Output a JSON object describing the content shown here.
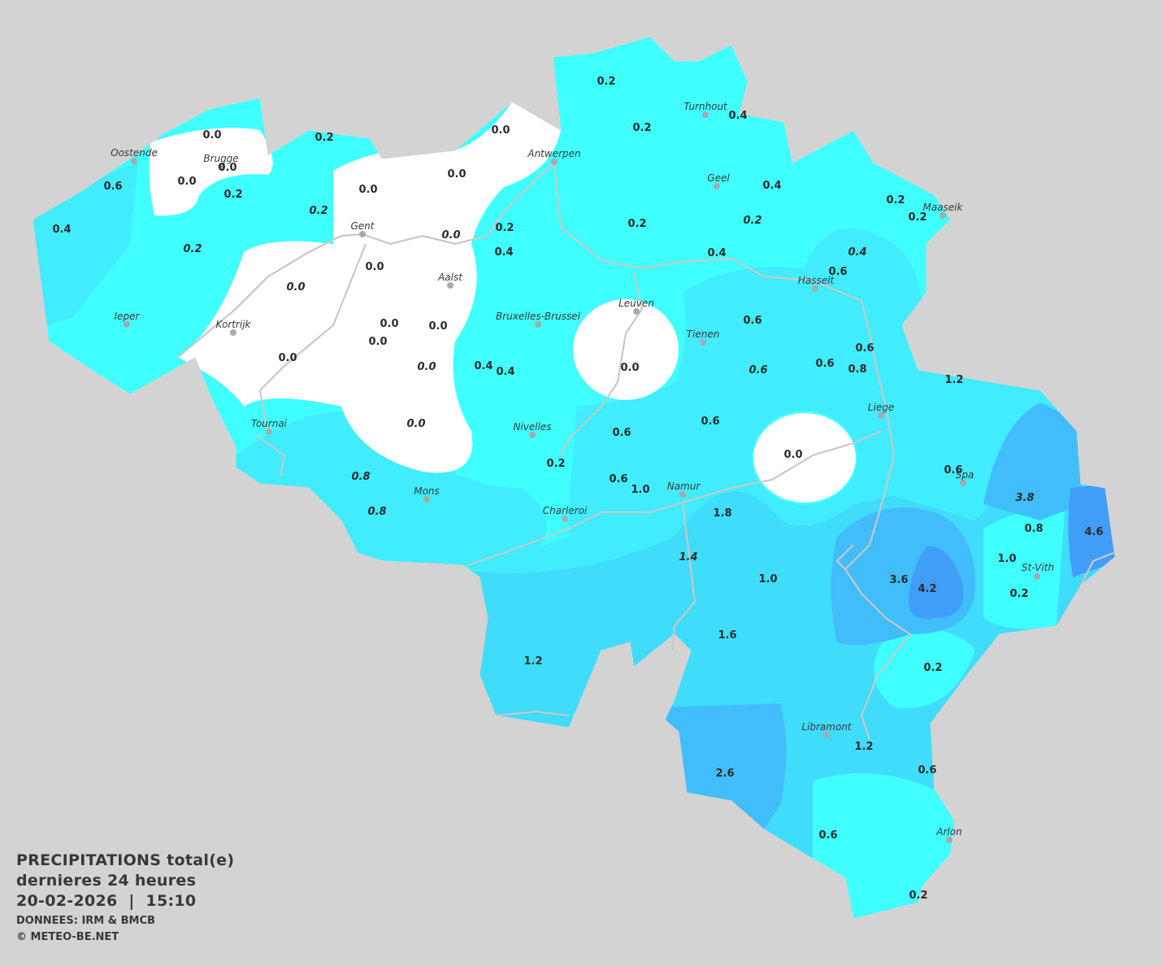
{
  "legend": {
    "title": "PRECIPITATIONS total(e)",
    "period": "dernieres 24 heures",
    "datetime": "20-02-2026  |  15:10",
    "source": "DONNEES: IRM & BMCB",
    "copyright": "© METEO-BE.NET"
  },
  "colors": {
    "background": "#d3d3d3",
    "zero": "#ffffff",
    "level_0_2": "#40ffff",
    "level_0_6": "#40ecfd",
    "level_1_2": "#3fdcfb",
    "level_2_6": "#40bdfa",
    "level_4": "#409df8",
    "rivers": "#c8c8c8"
  },
  "cities": [
    "Oostende",
    "Brugge",
    "Antwerpen",
    "Turnhout",
    "Gent",
    "Aalst",
    "Geel",
    "Maaseik",
    "Hasselt",
    "Ieper",
    "Kortrijk",
    "Bruxelles-Brussel",
    "Leuven",
    "Tienen",
    "Liege",
    "Tournai",
    "Nivelles",
    "Spa",
    "Mons",
    "Namur",
    "Charleroi",
    "St-Vith",
    "Libramont",
    "Arlon"
  ],
  "values": [
    "0.2",
    "0.2",
    "0.4",
    "0.0",
    "0.0",
    "0.0",
    "0.2",
    "0.0",
    "0.0",
    "0.6",
    "0.2",
    "0.0",
    "0.4",
    "0.2",
    "0.2",
    "0.2",
    "0.4",
    "0.2",
    "0.2",
    "0.2",
    "0.0",
    "0.2",
    "0.4",
    "0.4",
    "0.4",
    "0.0",
    "0.6",
    "0.0",
    "0.6",
    "0.0",
    "0.0",
    "0.0",
    "0.6",
    "0.0",
    "0.4",
    "0.4",
    "0.0",
    "0.0",
    "0.6",
    "0.6",
    "0.8",
    "1.2",
    "0.0",
    "0.6",
    "0.6",
    "0.0",
    "0.2",
    "0.6",
    "0.6",
    "1.0",
    "0.8",
    "3.8",
    "1.8",
    "0.8",
    "0.8",
    "4.6",
    "1.4",
    "1.0",
    "3.6",
    "4.2",
    "1.0",
    "0.2",
    "1.6",
    "1.2",
    "0.2",
    "1.2",
    "0.6",
    "2.6",
    "0.6",
    "0.2"
  ]
}
